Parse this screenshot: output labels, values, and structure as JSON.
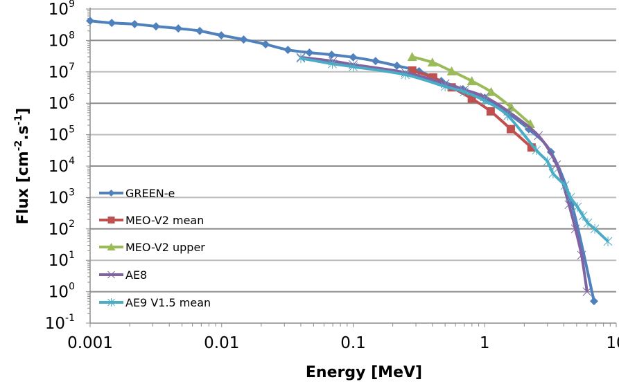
{
  "chart_data": {
    "type": "line",
    "title": "",
    "xlabel": "Energy [MeV]",
    "ylabel": "Flux [cm-2.s-1]",
    "ylabel_parts": {
      "base": "Flux [cm",
      "exp1": "-2",
      "mid": ".s",
      "exp2": "-1",
      "end": "]"
    },
    "xscale": "log",
    "yscale": "log",
    "xlim": [
      0.001,
      10
    ],
    "ylim": [
      0.1,
      1000000000
    ],
    "x_ticks": [
      {
        "value": 0.001,
        "label": "0.001"
      },
      {
        "value": 0.01,
        "label": "0.01"
      },
      {
        "value": 0.1,
        "label": "0.1"
      },
      {
        "value": 1,
        "label": "1"
      },
      {
        "value": 10,
        "label": "10"
      }
    ],
    "y_ticks": [
      {
        "value": 1000000000,
        "base": "10",
        "exp": "9"
      },
      {
        "value": 100000000,
        "base": "10",
        "exp": "8"
      },
      {
        "value": 10000000,
        "base": "10",
        "exp": "7"
      },
      {
        "value": 1000000,
        "base": "10",
        "exp": "6"
      },
      {
        "value": 100000,
        "base": "10",
        "exp": "5"
      },
      {
        "value": 10000,
        "base": "10",
        "exp": "4"
      },
      {
        "value": 1000,
        "base": "10",
        "exp": "3"
      },
      {
        "value": 100,
        "base": "10",
        "exp": "2"
      },
      {
        "value": 10,
        "base": "10",
        "exp": "1"
      },
      {
        "value": 1,
        "base": "10",
        "exp": "0"
      },
      {
        "value": 0.1,
        "base": "10",
        "exp": "-1"
      }
    ],
    "grid": {
      "y_major": true,
      "x_major": false
    },
    "legend_position": "lower-left inside plot",
    "series": [
      {
        "name": "GREEN-e",
        "color": "#4F81BD",
        "marker": "diamond",
        "x": [
          0.001,
          0.00146,
          0.00218,
          0.00317,
          0.00468,
          0.00682,
          0.00994,
          0.0147,
          0.0216,
          0.0319,
          0.0465,
          0.0686,
          0.1,
          0.148,
          0.215,
          0.317,
          0.468,
          0.683,
          1.0,
          1.48,
          2.16,
          3.19,
          4.59,
          6.78
        ],
        "y": [
          420000000,
          360000000,
          330000000,
          280000000,
          240000000,
          200000000,
          145000000,
          107000000,
          75000000,
          50000000,
          41000000,
          35000000,
          29000000,
          22000000,
          15600000,
          10500000,
          5100000,
          2800000,
          1500000,
          500000,
          150000,
          28000,
          620,
          0.5
        ]
      },
      {
        "name": "MEO-V2 mean",
        "color": "#C0504D",
        "marker": "square",
        "x": [
          0.281,
          0.405,
          0.561,
          0.798,
          1.11,
          1.58,
          2.27
        ],
        "y": [
          11000000,
          6600000,
          3200000,
          1400000,
          550000,
          150000,
          39000
        ]
      },
      {
        "name": "MEO-V2 upper",
        "color": "#9BBB59",
        "marker": "triangle",
        "x": [
          0.281,
          0.4,
          0.561,
          0.798,
          1.12,
          1.59,
          2.22
        ],
        "y": [
          30000000,
          20000000,
          10500000,
          5100000,
          2300000,
          750000,
          220000
        ]
      },
      {
        "name": "AE8",
        "color": "#8064A2",
        "marker": "x",
        "x": [
          0.04,
          0.07,
          0.1,
          0.25,
          0.5,
          0.7,
          1.0,
          1.5,
          2.56,
          3.52,
          4.37,
          4.89,
          5.45,
          6.0
        ],
        "y": [
          29000000,
          22000000,
          17000000,
          9500000,
          4200000,
          2700000,
          1600000,
          560000,
          93000,
          11000,
          590,
          100,
          14.5,
          1.0
        ]
      },
      {
        "name": "AE9 V1.5 mean",
        "color": "#4BACC6",
        "marker": "asterisk",
        "x": [
          0.04,
          0.0695,
          0.1,
          0.249,
          0.5,
          0.7,
          1.0,
          1.5,
          2.47,
          3.0,
          3.31,
          4.07,
          4.49,
          5.07,
          5.59,
          6.08,
          6.87,
          8.65
        ],
        "y": [
          27000000,
          18000000,
          14500000,
          8100000,
          3400000,
          2300000,
          1200000,
          400000,
          32000,
          14000,
          5800,
          2400,
          1000,
          500,
          260,
          155,
          100,
          40
        ]
      }
    ]
  }
}
